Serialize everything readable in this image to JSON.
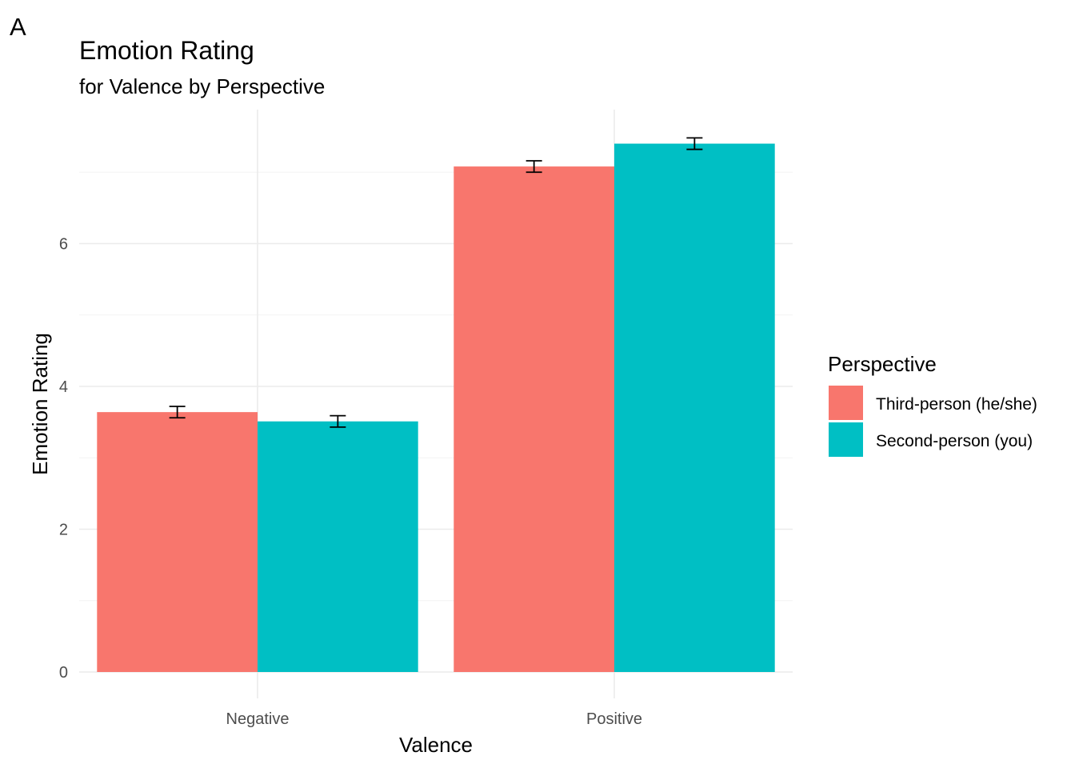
{
  "panel_tag": "A",
  "chart_data": {
    "type": "bar",
    "title": "Emotion Rating",
    "subtitle": "for Valence by Perspective",
    "xlabel": "Valence",
    "ylabel": "Emotion Rating",
    "categories": [
      "Negative",
      "Positive"
    ],
    "ylim": [
      0,
      7.5
    ],
    "yticks": [
      0,
      2,
      4,
      6
    ],
    "grid": true,
    "legend": {
      "title": "Perspective",
      "position": "right"
    },
    "series": [
      {
        "name": "Third-person (he/she)",
        "color": "#F8766D",
        "values": [
          3.64,
          7.08
        ],
        "error": [
          0.08,
          0.08
        ]
      },
      {
        "name": "Second-person (you)",
        "color": "#00BFC4",
        "values": [
          3.51,
          7.4
        ],
        "error": [
          0.08,
          0.08
        ]
      }
    ]
  }
}
